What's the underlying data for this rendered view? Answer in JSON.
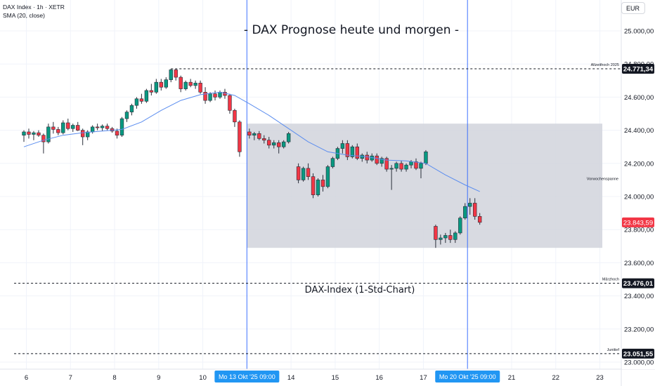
{
  "legend": {
    "symbol_line": "DAX Index · 1h · XETR",
    "indicator_line": "SMA (20, close)"
  },
  "currency": "EUR",
  "chart_data": {
    "type": "candlestick",
    "title": "- DAX Prognose heute und morgen -",
    "subtitle": "DAX-Index (1-Std-Chart)",
    "ylim": [
      22970,
      25120
    ],
    "y_ticks": [
      23000,
      23200,
      23400,
      23600,
      23800,
      24000,
      24200,
      24400,
      24600,
      24800,
      25000
    ],
    "y_tick_labels": [
      "23.000,00",
      "23.200,00",
      "23.400,00",
      "23.600,00",
      "23.800,00",
      "24.000,00",
      "24.200,00",
      "24.400,00",
      "24.600,00",
      "24.800,00",
      "25.000,00"
    ],
    "x_ticks": [
      {
        "label": "6",
        "x": 0.5
      },
      {
        "label": "7",
        "x": 9.5
      },
      {
        "label": "8",
        "x": 18.5
      },
      {
        "label": "9",
        "x": 27.5
      },
      {
        "label": "10",
        "x": 36.5
      },
      {
        "label": "14",
        "x": 54.5
      },
      {
        "label": "15",
        "x": 63.5
      },
      {
        "label": "16",
        "x": 72.5
      },
      {
        "label": "17",
        "x": 81.5
      },
      {
        "label": "21",
        "x": 99.5
      },
      {
        "label": "22",
        "x": 108.5
      },
      {
        "label": "23",
        "x": 117.5
      }
    ],
    "x_highlight_labels": [
      {
        "label": "Mo 13 Okt '25   09:00",
        "x": 45.5
      },
      {
        "label": "Mo 20 Okt '25   09:00",
        "x": 90.5
      }
    ],
    "vertical_markers_x": [
      45.5,
      90.5
    ],
    "candles": [
      {
        "x": 0,
        "o": 24370,
        "h": 24400,
        "l": 24330,
        "c": 24390
      },
      {
        "x": 1,
        "o": 24390,
        "h": 24410,
        "l": 24350,
        "c": 24375
      },
      {
        "x": 2,
        "o": 24375,
        "h": 24395,
        "l": 24340,
        "c": 24385
      },
      {
        "x": 3,
        "o": 24385,
        "h": 24400,
        "l": 24360,
        "c": 24370
      },
      {
        "x": 4,
        "o": 24370,
        "h": 24380,
        "l": 24260,
        "c": 24330
      },
      {
        "x": 5,
        "o": 24330,
        "h": 24440,
        "l": 24320,
        "c": 24420
      },
      {
        "x": 6,
        "o": 24420,
        "h": 24450,
        "l": 24380,
        "c": 24405
      },
      {
        "x": 7,
        "o": 24405,
        "h": 24420,
        "l": 24370,
        "c": 24385
      },
      {
        "x": 8,
        "o": 24385,
        "h": 24460,
        "l": 24375,
        "c": 24445
      },
      {
        "x": 9,
        "o": 24445,
        "h": 24470,
        "l": 24400,
        "c": 24410
      },
      {
        "x": 10,
        "o": 24410,
        "h": 24440,
        "l": 24390,
        "c": 24430
      },
      {
        "x": 11,
        "o": 24430,
        "h": 24450,
        "l": 24395,
        "c": 24400
      },
      {
        "x": 12,
        "o": 24400,
        "h": 24410,
        "l": 24310,
        "c": 24360
      },
      {
        "x": 13,
        "o": 24360,
        "h": 24400,
        "l": 24340,
        "c": 24390
      },
      {
        "x": 14,
        "o": 24390,
        "h": 24430,
        "l": 24380,
        "c": 24420
      },
      {
        "x": 15,
        "o": 24420,
        "h": 24440,
        "l": 24400,
        "c": 24415
      },
      {
        "x": 16,
        "o": 24415,
        "h": 24435,
        "l": 24395,
        "c": 24425
      },
      {
        "x": 17,
        "o": 24425,
        "h": 24440,
        "l": 24400,
        "c": 24410
      },
      {
        "x": 18,
        "o": 24410,
        "h": 24420,
        "l": 24385,
        "c": 24395
      },
      {
        "x": 19,
        "o": 24395,
        "h": 24410,
        "l": 24350,
        "c": 24370
      },
      {
        "x": 20,
        "o": 24370,
        "h": 24480,
        "l": 24360,
        "c": 24470
      },
      {
        "x": 21,
        "o": 24470,
        "h": 24520,
        "l": 24450,
        "c": 24510
      },
      {
        "x": 22,
        "o": 24510,
        "h": 24560,
        "l": 24490,
        "c": 24550
      },
      {
        "x": 23,
        "o": 24550,
        "h": 24600,
        "l": 24530,
        "c": 24590
      },
      {
        "x": 24,
        "o": 24590,
        "h": 24620,
        "l": 24560,
        "c": 24575
      },
      {
        "x": 25,
        "o": 24575,
        "h": 24650,
        "l": 24565,
        "c": 24640
      },
      {
        "x": 26,
        "o": 24640,
        "h": 24680,
        "l": 24610,
        "c": 24630
      },
      {
        "x": 27,
        "o": 24630,
        "h": 24710,
        "l": 24620,
        "c": 24690
      },
      {
        "x": 28,
        "o": 24690,
        "h": 24710,
        "l": 24640,
        "c": 24660
      },
      {
        "x": 29,
        "o": 24660,
        "h": 24720,
        "l": 24650,
        "c": 24705
      },
      {
        "x": 30,
        "o": 24705,
        "h": 24771,
        "l": 24690,
        "c": 24765
      },
      {
        "x": 31,
        "o": 24765,
        "h": 24771,
        "l": 24700,
        "c": 24720
      },
      {
        "x": 32,
        "o": 24720,
        "h": 24730,
        "l": 24630,
        "c": 24650
      },
      {
        "x": 33,
        "o": 24650,
        "h": 24700,
        "l": 24640,
        "c": 24690
      },
      {
        "x": 34,
        "o": 24690,
        "h": 24710,
        "l": 24660,
        "c": 24670
      },
      {
        "x": 35,
        "o": 24670,
        "h": 24700,
        "l": 24650,
        "c": 24685
      },
      {
        "x": 36,
        "o": 24685,
        "h": 24700,
        "l": 24620,
        "c": 24630
      },
      {
        "x": 37,
        "o": 24630,
        "h": 24660,
        "l": 24560,
        "c": 24580
      },
      {
        "x": 38,
        "o": 24580,
        "h": 24630,
        "l": 24570,
        "c": 24620
      },
      {
        "x": 39,
        "o": 24620,
        "h": 24640,
        "l": 24580,
        "c": 24600
      },
      {
        "x": 40,
        "o": 24600,
        "h": 24640,
        "l": 24590,
        "c": 24630
      },
      {
        "x": 41,
        "o": 24630,
        "h": 24650,
        "l": 24590,
        "c": 24610
      },
      {
        "x": 42,
        "o": 24610,
        "h": 24620,
        "l": 24500,
        "c": 24520
      },
      {
        "x": 43,
        "o": 24520,
        "h": 24530,
        "l": 24420,
        "c": 24450
      },
      {
        "x": 44,
        "o": 24450,
        "h": 24460,
        "l": 24240,
        "c": 24270
      },
      {
        "x": 46,
        "o": 24390,
        "h": 24410,
        "l": 24350,
        "c": 24370
      },
      {
        "x": 47,
        "o": 24370,
        "h": 24390,
        "l": 24340,
        "c": 24380
      },
      {
        "x": 48,
        "o": 24380,
        "h": 24395,
        "l": 24340,
        "c": 24350
      },
      {
        "x": 49,
        "o": 24350,
        "h": 24370,
        "l": 24320,
        "c": 24340
      },
      {
        "x": 50,
        "o": 24340,
        "h": 24360,
        "l": 24290,
        "c": 24310
      },
      {
        "x": 51,
        "o": 24310,
        "h": 24340,
        "l": 24290,
        "c": 24325
      },
      {
        "x": 52,
        "o": 24325,
        "h": 24340,
        "l": 24260,
        "c": 24300
      },
      {
        "x": 53,
        "o": 24300,
        "h": 24340,
        "l": 24290,
        "c": 24330
      },
      {
        "x": 54,
        "o": 24330,
        "h": 24390,
        "l": 24320,
        "c": 24380
      },
      {
        "x": 56,
        "o": 24180,
        "h": 24200,
        "l": 24080,
        "c": 24100
      },
      {
        "x": 57,
        "o": 24100,
        "h": 24180,
        "l": 24090,
        "c": 24170
      },
      {
        "x": 58,
        "o": 24170,
        "h": 24200,
        "l": 24100,
        "c": 24120
      },
      {
        "x": 59,
        "o": 24120,
        "h": 24140,
        "l": 23990,
        "c": 24010
      },
      {
        "x": 60,
        "o": 24010,
        "h": 24110,
        "l": 24000,
        "c": 24100
      },
      {
        "x": 61,
        "o": 24100,
        "h": 24130,
        "l": 24030,
        "c": 24060
      },
      {
        "x": 62,
        "o": 24060,
        "h": 24190,
        "l": 24050,
        "c": 24180
      },
      {
        "x": 63,
        "o": 24180,
        "h": 24240,
        "l": 24170,
        "c": 24230
      },
      {
        "x": 64,
        "o": 24230,
        "h": 24300,
        "l": 24220,
        "c": 24290
      },
      {
        "x": 65,
        "o": 24290,
        "h": 24340,
        "l": 24260,
        "c": 24320
      },
      {
        "x": 66,
        "o": 24320,
        "h": 24340,
        "l": 24220,
        "c": 24240
      },
      {
        "x": 67,
        "o": 24240,
        "h": 24310,
        "l": 24230,
        "c": 24300
      },
      {
        "x": 68,
        "o": 24300,
        "h": 24320,
        "l": 24220,
        "c": 24230
      },
      {
        "x": 69,
        "o": 24230,
        "h": 24260,
        "l": 24210,
        "c": 24250
      },
      {
        "x": 70,
        "o": 24250,
        "h": 24270,
        "l": 24200,
        "c": 24220
      },
      {
        "x": 71,
        "o": 24220,
        "h": 24260,
        "l": 24210,
        "c": 24245
      },
      {
        "x": 72,
        "o": 24245,
        "h": 24260,
        "l": 24190,
        "c": 24200
      },
      {
        "x": 73,
        "o": 24200,
        "h": 24240,
        "l": 24180,
        "c": 24230
      },
      {
        "x": 74,
        "o": 24230,
        "h": 24240,
        "l": 24150,
        "c": 24165
      },
      {
        "x": 75,
        "o": 24165,
        "h": 24190,
        "l": 24040,
        "c": 24170
      },
      {
        "x": 76,
        "o": 24170,
        "h": 24210,
        "l": 24150,
        "c": 24200
      },
      {
        "x": 77,
        "o": 24200,
        "h": 24215,
        "l": 24150,
        "c": 24165
      },
      {
        "x": 78,
        "o": 24165,
        "h": 24200,
        "l": 24150,
        "c": 24190
      },
      {
        "x": 79,
        "o": 24190,
        "h": 24220,
        "l": 24170,
        "c": 24210
      },
      {
        "x": 80,
        "o": 24210,
        "h": 24230,
        "l": 24160,
        "c": 24170
      },
      {
        "x": 81,
        "o": 24170,
        "h": 24210,
        "l": 24110,
        "c": 24200
      },
      {
        "x": 82,
        "o": 24200,
        "h": 24280,
        "l": 24190,
        "c": 24270
      },
      {
        "x": 84,
        "o": 23820,
        "h": 23830,
        "l": 23690,
        "c": 23740
      },
      {
        "x": 85,
        "o": 23740,
        "h": 23770,
        "l": 23710,
        "c": 23750
      },
      {
        "x": 86,
        "o": 23750,
        "h": 23780,
        "l": 23720,
        "c": 23765
      },
      {
        "x": 87,
        "o": 23765,
        "h": 23800,
        "l": 23720,
        "c": 23740
      },
      {
        "x": 88,
        "o": 23740,
        "h": 23790,
        "l": 23720,
        "c": 23780
      },
      {
        "x": 89,
        "o": 23780,
        "h": 23880,
        "l": 23770,
        "c": 23870
      },
      {
        "x": 90,
        "o": 23870,
        "h": 23960,
        "l": 23860,
        "c": 23940
      },
      {
        "x": 91,
        "o": 23940,
        "h": 23990,
        "l": 23890,
        "c": 23960
      },
      {
        "x": 92,
        "o": 23960,
        "h": 23990,
        "l": 23860,
        "c": 23880
      },
      {
        "x": 93,
        "o": 23880,
        "h": 23900,
        "l": 23830,
        "c": 23844
      }
    ],
    "sma_line": {
      "name": "SMA (20, close)",
      "color": "#5b8def",
      "points": [
        [
          0,
          24300
        ],
        [
          4,
          24340
        ],
        [
          8,
          24370
        ],
        [
          12,
          24385
        ],
        [
          16,
          24395
        ],
        [
          20,
          24405
        ],
        [
          24,
          24450
        ],
        [
          28,
          24520
        ],
        [
          32,
          24580
        ],
        [
          36,
          24615
        ],
        [
          40,
          24630
        ],
        [
          43,
          24610
        ],
        [
          46,
          24560
        ],
        [
          50,
          24490
        ],
        [
          54,
          24410
        ],
        [
          58,
          24330
        ],
        [
          62,
          24270
        ],
        [
          66,
          24250
        ],
        [
          70,
          24240
        ],
        [
          74,
          24220
        ],
        [
          78,
          24215
        ],
        [
          82,
          24200
        ],
        [
          86,
          24130
        ],
        [
          90,
          24070
        ],
        [
          93,
          24030
        ]
      ]
    },
    "zone": {
      "label": "Vorwochenspanne",
      "x_start": 45.5,
      "x_end": 118,
      "y_low": 23690,
      "y_high": 24440,
      "color": "#d1d4dc"
    },
    "levels": [
      {
        "label": "Allzeithoch 2025",
        "value": 24771.34,
        "value_label": "24.771,34",
        "x_start": 30
      },
      {
        "label": "Märzhoch",
        "value": 23476.01,
        "value_label": "23.476,01",
        "x_start": -2
      },
      {
        "label": "Junitief",
        "value": 23051.55,
        "value_label": "23.051,55",
        "x_start": -2
      }
    ],
    "last_price": {
      "value": 23843.59,
      "value_label": "23.843,59",
      "color": "#f23645"
    },
    "colors": {
      "up": "#089981",
      "down": "#f23645",
      "grid": "#f0f3fa",
      "marker": "#2962ff",
      "label_bg": "#2196f3"
    }
  }
}
